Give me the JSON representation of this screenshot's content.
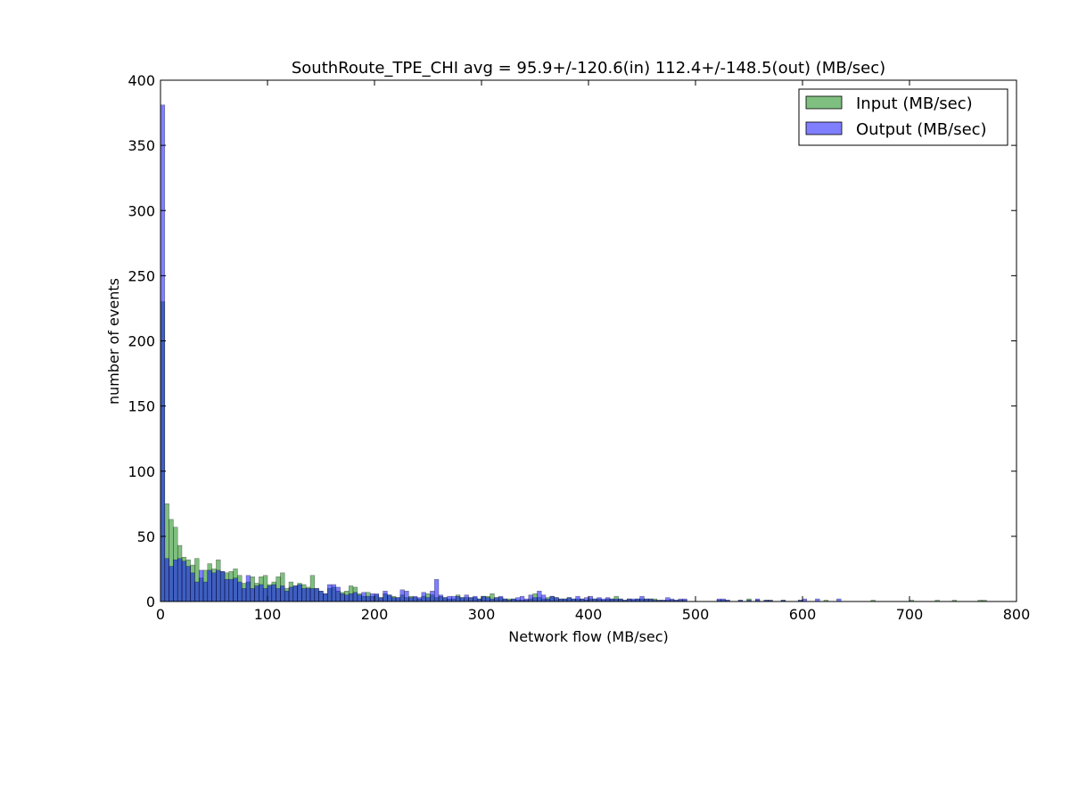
{
  "chart_data": {
    "type": "bar",
    "title": "SouthRoute_TPE_CHI avg = 95.9+/-120.6(in) 112.4+/-148.5(out) (MB/sec)",
    "xlabel": "Network flow (MB/sec)",
    "ylabel": "number of events",
    "xlim": [
      0,
      800
    ],
    "ylim": [
      0,
      400
    ],
    "xticks": [
      "0",
      "100",
      "200",
      "300",
      "400",
      "500",
      "600",
      "700",
      "800"
    ],
    "yticks": [
      "0",
      "50",
      "100",
      "150",
      "200",
      "250",
      "300",
      "350",
      "400"
    ],
    "grid": false,
    "legend_position": "top-right",
    "bin_width_mb_per_sec": 4,
    "series": [
      {
        "name": "Input (MB/sec)",
        "color": "#008000",
        "alpha": 0.5,
        "bin_starts": [
          0,
          4,
          8,
          12,
          16,
          20,
          24,
          28,
          32,
          36,
          40,
          44,
          48,
          52,
          56,
          60,
          64,
          68,
          72,
          76,
          80,
          84,
          88,
          92,
          96,
          100,
          104,
          108,
          112,
          116,
          120,
          124,
          128,
          132,
          136,
          140,
          144,
          148,
          152,
          156,
          160,
          164,
          168,
          172,
          176,
          180,
          184,
          188,
          192,
          196,
          200,
          204,
          208,
          212,
          216,
          220,
          224,
          228,
          232,
          236,
          240,
          244,
          248,
          252,
          256,
          260,
          264,
          268,
          272,
          276,
          280,
          284,
          288,
          292,
          296,
          300,
          304,
          308,
          312,
          316,
          320,
          324,
          328,
          332,
          336,
          340,
          344,
          348,
          352,
          356,
          360,
          364,
          368,
          372,
          376,
          380,
          384,
          388,
          392,
          396,
          400,
          404,
          408,
          412,
          416,
          420,
          424,
          428,
          432,
          436,
          440,
          444,
          448,
          452,
          456,
          460,
          464,
          468,
          472,
          476,
          480,
          484,
          488,
          520,
          524,
          528,
          540,
          548,
          556,
          564,
          568,
          580,
          596,
          620,
          664,
          700,
          724,
          740,
          764,
          768
        ],
        "values": [
          230,
          75,
          63,
          57,
          43,
          34,
          32,
          28,
          33,
          18,
          24,
          29,
          25,
          32,
          23,
          22,
          23,
          25,
          20,
          14,
          15,
          19,
          14,
          19,
          20,
          13,
          15,
          19,
          22,
          10,
          15,
          12,
          14,
          13,
          11,
          20,
          10,
          8,
          6,
          10,
          11,
          8,
          7,
          8,
          12,
          11,
          6,
          4,
          7,
          4,
          5,
          3,
          6,
          5,
          4,
          3,
          5,
          3,
          4,
          3,
          2,
          4,
          6,
          5,
          3,
          4,
          3,
          2,
          2,
          5,
          3,
          3,
          3,
          3,
          2,
          4,
          4,
          6,
          3,
          3,
          2,
          2,
          2,
          1,
          1,
          1,
          2,
          6,
          3,
          2,
          3,
          4,
          3,
          2,
          2,
          3,
          2,
          2,
          2,
          1,
          2,
          2,
          2,
          1,
          2,
          2,
          4,
          2,
          1,
          2,
          1,
          2,
          2,
          2,
          2,
          2,
          1,
          1,
          1,
          1,
          1,
          1,
          1,
          1,
          1,
          1,
          1,
          2,
          1,
          1,
          1,
          1,
          1,
          1,
          1,
          1,
          1,
          1,
          1,
          1
        ]
      },
      {
        "name": "Output (MB/sec)",
        "color": "#0000ff",
        "alpha": 0.5,
        "bin_starts": [
          0,
          4,
          8,
          12,
          16,
          20,
          24,
          28,
          32,
          36,
          40,
          44,
          48,
          52,
          56,
          60,
          64,
          68,
          72,
          76,
          80,
          84,
          88,
          92,
          96,
          100,
          104,
          108,
          112,
          116,
          120,
          124,
          128,
          132,
          136,
          140,
          144,
          148,
          152,
          156,
          160,
          164,
          168,
          172,
          176,
          180,
          184,
          188,
          192,
          196,
          200,
          204,
          208,
          212,
          216,
          220,
          224,
          228,
          232,
          236,
          240,
          244,
          248,
          252,
          256,
          260,
          264,
          268,
          272,
          276,
          280,
          284,
          288,
          292,
          296,
          300,
          304,
          308,
          312,
          316,
          320,
          324,
          328,
          332,
          336,
          340,
          344,
          348,
          352,
          356,
          360,
          364,
          368,
          372,
          376,
          380,
          384,
          388,
          392,
          396,
          400,
          404,
          408,
          412,
          416,
          420,
          424,
          428,
          432,
          436,
          440,
          444,
          448,
          452,
          456,
          460,
          464,
          468,
          472,
          476,
          480,
          484,
          488,
          520,
          524,
          528,
          540,
          548,
          556,
          564,
          568,
          580,
          596,
          600,
          612,
          632
        ],
        "values": [
          381,
          33,
          27,
          32,
          33,
          31,
          27,
          22,
          15,
          24,
          15,
          24,
          22,
          24,
          23,
          17,
          17,
          18,
          15,
          10,
          20,
          10,
          12,
          13,
          10,
          12,
          13,
          10,
          12,
          8,
          11,
          12,
          13,
          10,
          10,
          10,
          10,
          8,
          6,
          13,
          13,
          11,
          6,
          5,
          6,
          7,
          5,
          7,
          4,
          6,
          6,
          3,
          8,
          5,
          3,
          3,
          9,
          8,
          3,
          4,
          3,
          7,
          3,
          8,
          17,
          5,
          3,
          4,
          4,
          4,
          3,
          5,
          3,
          4,
          2,
          4,
          3,
          2,
          3,
          4,
          2,
          1,
          2,
          3,
          4,
          2,
          5,
          3,
          8,
          5,
          2,
          4,
          3,
          2,
          2,
          3,
          2,
          4,
          2,
          3,
          4,
          2,
          3,
          2,
          3,
          2,
          2,
          2,
          1,
          2,
          2,
          2,
          4,
          2,
          2,
          1,
          1,
          1,
          3,
          2,
          1,
          2,
          2,
          2,
          2,
          1,
          1,
          1,
          2,
          1,
          1,
          1,
          1,
          2,
          2,
          2
        ]
      }
    ]
  }
}
